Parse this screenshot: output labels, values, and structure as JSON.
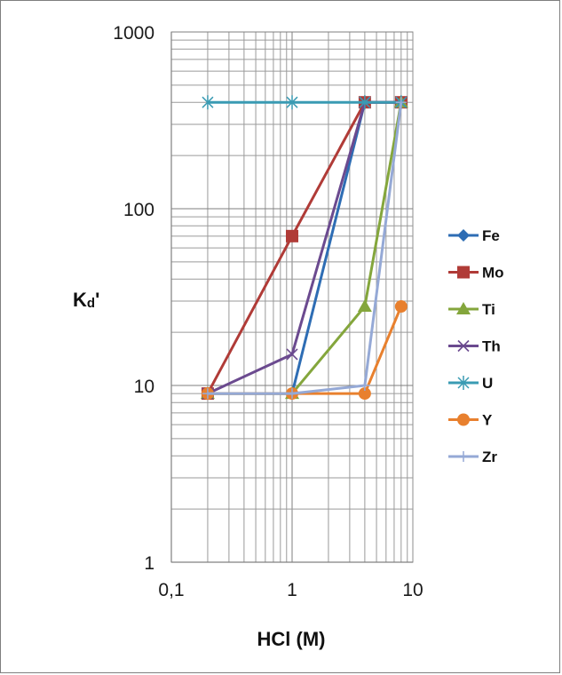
{
  "chart_data": {
    "type": "line",
    "title": "",
    "xlabel": "HCl (M)",
    "ylabel_main": "K",
    "ylabel_sub": "d",
    "ylabel_suffix": "'",
    "x_scale": "log",
    "y_scale": "log",
    "xlim": [
      0.1,
      10
    ],
    "ylim": [
      1,
      1000
    ],
    "grid": true,
    "legend_position": "right",
    "x_ticks": [
      {
        "value": 0.1,
        "label": "0,1"
      },
      {
        "value": 1,
        "label": "1"
      },
      {
        "value": 10,
        "label": "10"
      }
    ],
    "y_ticks": [
      {
        "value": 1,
        "label": "1"
      },
      {
        "value": 10,
        "label": "10"
      },
      {
        "value": 100,
        "label": "100"
      },
      {
        "value": 1000,
        "label": "1000"
      }
    ],
    "series": [
      {
        "name": "Fe",
        "color": "#2e6db4",
        "marker": "diamond",
        "x": [
          0.2,
          1,
          4,
          8
        ],
        "y": [
          9,
          9,
          400,
          400
        ]
      },
      {
        "name": "Mo",
        "color": "#b03b37",
        "marker": "square",
        "x": [
          0.2,
          1,
          4,
          8
        ],
        "y": [
          9,
          70,
          400,
          400
        ]
      },
      {
        "name": "Ti",
        "color": "#84a63c",
        "marker": "triangle",
        "x": [
          0.2,
          1,
          4,
          8
        ],
        "y": [
          9,
          9,
          28,
          400
        ]
      },
      {
        "name": "Th",
        "color": "#6b4a8f",
        "marker": "x",
        "x": [
          0.2,
          1,
          4,
          8
        ],
        "y": [
          9,
          15,
          400,
          400
        ]
      },
      {
        "name": "U",
        "color": "#3a9bb3",
        "marker": "star",
        "x": [
          0.2,
          1,
          4,
          8
        ],
        "y": [
          400,
          400,
          400,
          400
        ]
      },
      {
        "name": "Y",
        "color": "#e8802e",
        "marker": "circle",
        "x": [
          0.2,
          1,
          4,
          8
        ],
        "y": [
          9,
          9,
          9,
          28
        ]
      },
      {
        "name": "Zr",
        "color": "#95a9d6",
        "marker": "plus",
        "x": [
          0.2,
          1,
          4,
          8
        ],
        "y": [
          9,
          9,
          10,
          400
        ]
      }
    ]
  }
}
